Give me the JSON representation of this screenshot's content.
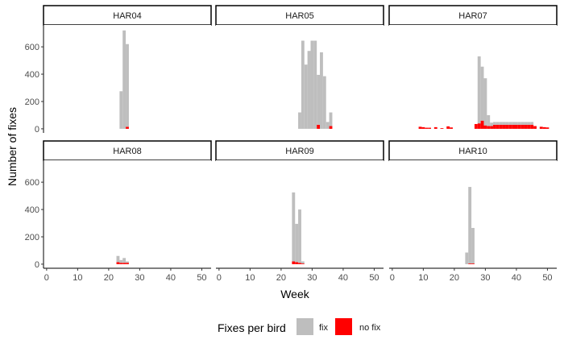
{
  "chart_data": {
    "type": "bar",
    "stacked": true,
    "facet_layout": "2 rows x 3 columns, shared axes",
    "xlabel": "Week",
    "ylabel": "Number of fixes",
    "xlim": [
      -1,
      53
    ],
    "ylim": [
      -30,
      760
    ],
    "x_ticks": [
      0,
      10,
      20,
      30,
      40,
      50
    ],
    "y_ticks": [
      0,
      200,
      400,
      600
    ],
    "legend": {
      "title": "Fixes per bird",
      "position": "bottom",
      "entries": [
        {
          "key": "fix",
          "label": "fix",
          "color": "#bebebe"
        },
        {
          "key": "nofix",
          "label": "no fix",
          "color": "#ff0000"
        }
      ]
    },
    "facets": [
      {
        "name": "HAR04",
        "bars": [
          {
            "week": 24,
            "fix": 275,
            "nofix": 0
          },
          {
            "week": 25,
            "fix": 720,
            "nofix": 0
          },
          {
            "week": 26,
            "fix": 605,
            "nofix": 15
          }
        ]
      },
      {
        "name": "HAR05",
        "bars": [
          {
            "week": 26,
            "fix": 120,
            "nofix": 0
          },
          {
            "week": 27,
            "fix": 645,
            "nofix": 0
          },
          {
            "week": 28,
            "fix": 470,
            "nofix": 0
          },
          {
            "week": 29,
            "fix": 570,
            "nofix": 0
          },
          {
            "week": 30,
            "fix": 645,
            "nofix": 0
          },
          {
            "week": 31,
            "fix": 645,
            "nofix": 0
          },
          {
            "week": 32,
            "fix": 365,
            "nofix": 30
          },
          {
            "week": 33,
            "fix": 560,
            "nofix": 0
          },
          {
            "week": 34,
            "fix": 385,
            "nofix": 0
          },
          {
            "week": 35,
            "fix": 50,
            "nofix": 0
          },
          {
            "week": 36,
            "fix": 100,
            "nofix": 20
          }
        ]
      },
      {
        "name": "HAR07",
        "bars": [
          {
            "week": 9,
            "fix": 0,
            "nofix": 15
          },
          {
            "week": 10,
            "fix": 0,
            "nofix": 12
          },
          {
            "week": 11,
            "fix": 0,
            "nofix": 8
          },
          {
            "week": 12,
            "fix": 0,
            "nofix": 8
          },
          {
            "week": 14,
            "fix": 0,
            "nofix": 12
          },
          {
            "week": 16,
            "fix": 0,
            "nofix": 5
          },
          {
            "week": 18,
            "fix": 0,
            "nofix": 18
          },
          {
            "week": 19,
            "fix": 0,
            "nofix": 10
          },
          {
            "week": 27,
            "fix": 0,
            "nofix": 35
          },
          {
            "week": 28,
            "fix": 490,
            "nofix": 40
          },
          {
            "week": 29,
            "fix": 395,
            "nofix": 60
          },
          {
            "week": 30,
            "fix": 345,
            "nofix": 25
          },
          {
            "week": 31,
            "fix": 80,
            "nofix": 20
          },
          {
            "week": 32,
            "fix": 25,
            "nofix": 20
          },
          {
            "week": 33,
            "fix": 20,
            "nofix": 30
          },
          {
            "week": 34,
            "fix": 20,
            "nofix": 30
          },
          {
            "week": 35,
            "fix": 20,
            "nofix": 30
          },
          {
            "week": 36,
            "fix": 20,
            "nofix": 30
          },
          {
            "week": 37,
            "fix": 20,
            "nofix": 30
          },
          {
            "week": 38,
            "fix": 20,
            "nofix": 30
          },
          {
            "week": 39,
            "fix": 20,
            "nofix": 30
          },
          {
            "week": 40,
            "fix": 20,
            "nofix": 30
          },
          {
            "week": 41,
            "fix": 20,
            "nofix": 30
          },
          {
            "week": 42,
            "fix": 20,
            "nofix": 30
          },
          {
            "week": 43,
            "fix": 20,
            "nofix": 30
          },
          {
            "week": 44,
            "fix": 20,
            "nofix": 30
          },
          {
            "week": 45,
            "fix": 20,
            "nofix": 30
          },
          {
            "week": 46,
            "fix": 0,
            "nofix": 20
          },
          {
            "week": 48,
            "fix": 0,
            "nofix": 15
          },
          {
            "week": 49,
            "fix": 0,
            "nofix": 12
          },
          {
            "week": 50,
            "fix": 0,
            "nofix": 10
          }
        ]
      },
      {
        "name": "HAR08",
        "bars": [
          {
            "week": 23,
            "fix": 45,
            "nofix": 15
          },
          {
            "week": 24,
            "fix": 20,
            "nofix": 10
          },
          {
            "week": 25,
            "fix": 35,
            "nofix": 10
          },
          {
            "week": 26,
            "fix": 10,
            "nofix": 10
          }
        ]
      },
      {
        "name": "HAR09",
        "bars": [
          {
            "week": 24,
            "fix": 505,
            "nofix": 20
          },
          {
            "week": 25,
            "fix": 280,
            "nofix": 15
          },
          {
            "week": 26,
            "fix": 390,
            "nofix": 10
          },
          {
            "week": 27,
            "fix": 15,
            "nofix": 5
          }
        ]
      },
      {
        "name": "HAR10",
        "bars": [
          {
            "week": 24,
            "fix": 85,
            "nofix": 0
          },
          {
            "week": 25,
            "fix": 560,
            "nofix": 5
          },
          {
            "week": 26,
            "fix": 260,
            "nofix": 5
          }
        ]
      }
    ]
  }
}
